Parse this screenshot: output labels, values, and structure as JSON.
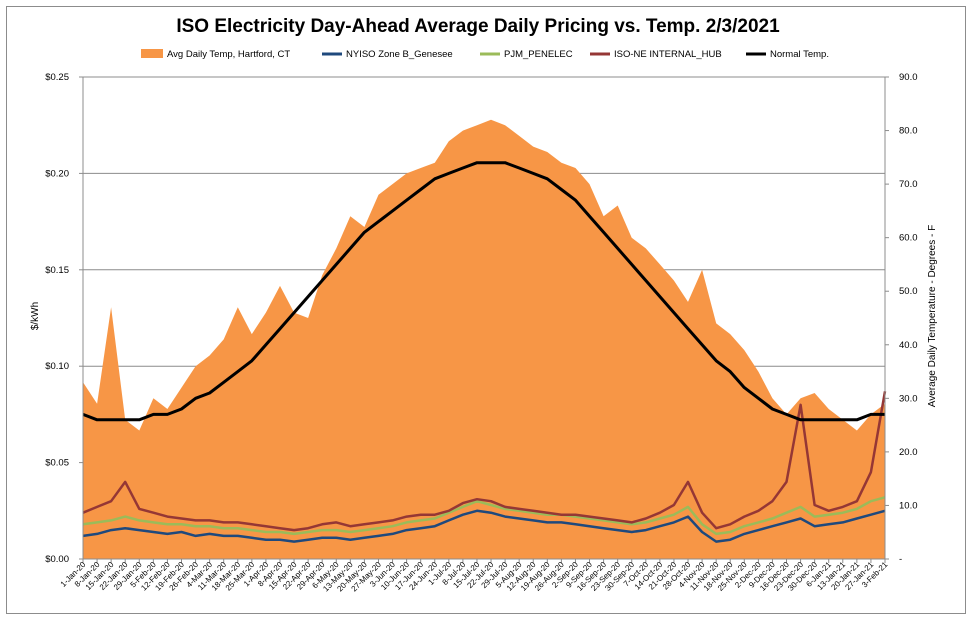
{
  "chart_data": {
    "type": "area",
    "title": "ISO Electricity Day-Ahead Average Daily Pricing vs. Temp. 2/3/2021",
    "xlabel": "",
    "ylabel": "$/kWh",
    "y2label": "Average Daily Temperature - Degrees - F",
    "ylim": [
      0,
      0.25
    ],
    "y2lim": [
      0,
      90
    ],
    "yticks": [
      "$0.00",
      "$0.05",
      "$0.10",
      "$0.15",
      "$0.20",
      "$0.25"
    ],
    "y2ticks": [
      "-",
      "10.0",
      "20.0",
      "30.0",
      "40.0",
      "50.0",
      "60.0",
      "70.0",
      "80.0",
      "90.0"
    ],
    "grid": true,
    "legend_position": "top",
    "x_range": [
      "2020-01-01",
      "2021-02-03"
    ],
    "categories": [
      "1-Jan-20",
      "8-Jan-20",
      "15-Jan-20",
      "22-Jan-20",
      "29-Jan-20",
      "5-Feb-20",
      "12-Feb-20",
      "19-Feb-20",
      "26-Feb-20",
      "4-Mar-20",
      "11-Mar-20",
      "18-Mar-20",
      "25-Mar-20",
      "1-Apr-20",
      "8-Apr-20",
      "15-Apr-20",
      "22-Apr-20",
      "29-Apr-20",
      "6-May-20",
      "13-May-20",
      "20-May-20",
      "27-May-20",
      "3-Jun-20",
      "10-Jun-20",
      "17-Jun-20",
      "24-Jun-20",
      "1-Jul-20",
      "8-Jul-20",
      "15-Jul-20",
      "22-Jul-20",
      "29-Jul-20",
      "5-Aug-20",
      "12-Aug-20",
      "19-Aug-20",
      "26-Aug-20",
      "2-Sep-20",
      "9-Sep-20",
      "16-Sep-20",
      "23-Sep-20",
      "30-Sep-20",
      "7-Oct-20",
      "14-Oct-20",
      "21-Oct-20",
      "28-Oct-20",
      "4-Nov-20",
      "11-Nov-20",
      "18-Nov-20",
      "25-Nov-20",
      "2-Dec-20",
      "9-Dec-20",
      "16-Dec-20",
      "23-Dec-20",
      "30-Dec-20",
      "6-Jan-21",
      "13-Jan-21",
      "20-Jan-21",
      "27-Jan-21",
      "3-Feb-21"
    ],
    "series": [
      {
        "name": "Avg Daily Temp, Hartford, CT",
        "type": "area",
        "axis": "right",
        "color": "#F79646",
        "values": [
          33,
          29,
          47,
          26,
          24,
          30,
          28,
          32,
          36,
          38,
          41,
          47,
          42,
          46,
          51,
          46,
          45,
          53,
          58,
          64,
          62,
          68,
          70,
          72,
          73,
          74,
          78,
          80,
          81,
          82,
          81,
          79,
          77,
          76,
          74,
          73,
          70,
          64,
          66,
          60,
          58,
          55,
          52,
          48,
          54,
          44,
          42,
          39,
          35,
          30,
          27,
          30,
          31,
          28,
          26,
          24,
          27,
          29
        ]
      },
      {
        "name": "NYISO Zone B_Genesee",
        "type": "line",
        "axis": "left",
        "color": "#1F497D",
        "values": [
          0.012,
          0.013,
          0.015,
          0.016,
          0.015,
          0.014,
          0.013,
          0.014,
          0.012,
          0.013,
          0.012,
          0.012,
          0.011,
          0.01,
          0.01,
          0.009,
          0.01,
          0.011,
          0.011,
          0.01,
          0.011,
          0.012,
          0.013,
          0.015,
          0.016,
          0.017,
          0.02,
          0.023,
          0.025,
          0.024,
          0.022,
          0.021,
          0.02,
          0.019,
          0.019,
          0.018,
          0.017,
          0.016,
          0.015,
          0.014,
          0.015,
          0.017,
          0.019,
          0.022,
          0.014,
          0.009,
          0.01,
          0.013,
          0.015,
          0.017,
          0.019,
          0.021,
          0.017,
          0.018,
          0.019,
          0.021,
          0.023,
          0.025
        ]
      },
      {
        "name": "PJM_PENELEC",
        "type": "line",
        "axis": "left",
        "color": "#9BBB59",
        "values": [
          0.018,
          0.019,
          0.02,
          0.022,
          0.02,
          0.019,
          0.018,
          0.018,
          0.017,
          0.017,
          0.016,
          0.016,
          0.015,
          0.014,
          0.014,
          0.013,
          0.014,
          0.015,
          0.015,
          0.014,
          0.015,
          0.016,
          0.017,
          0.019,
          0.02,
          0.021,
          0.024,
          0.027,
          0.03,
          0.028,
          0.026,
          0.025,
          0.024,
          0.023,
          0.023,
          0.022,
          0.021,
          0.02,
          0.019,
          0.018,
          0.019,
          0.021,
          0.023,
          0.027,
          0.018,
          0.013,
          0.014,
          0.017,
          0.019,
          0.021,
          0.024,
          0.027,
          0.022,
          0.023,
          0.024,
          0.026,
          0.03,
          0.032
        ]
      },
      {
        "name": "ISO-NE INTERNAL_HUB",
        "type": "line",
        "axis": "left",
        "color": "#953735",
        "values": [
          0.024,
          0.027,
          0.03,
          0.04,
          0.026,
          0.024,
          0.022,
          0.021,
          0.02,
          0.02,
          0.019,
          0.019,
          0.018,
          0.017,
          0.016,
          0.015,
          0.016,
          0.018,
          0.019,
          0.017,
          0.018,
          0.019,
          0.02,
          0.022,
          0.023,
          0.023,
          0.025,
          0.029,
          0.031,
          0.03,
          0.027,
          0.026,
          0.025,
          0.024,
          0.023,
          0.023,
          0.022,
          0.021,
          0.02,
          0.019,
          0.021,
          0.024,
          0.028,
          0.04,
          0.024,
          0.016,
          0.018,
          0.022,
          0.025,
          0.03,
          0.04,
          0.08,
          0.028,
          0.025,
          0.027,
          0.03,
          0.045,
          0.087
        ]
      },
      {
        "name": "Normal Temp.",
        "type": "line",
        "axis": "right",
        "color": "#000000",
        "values": [
          27,
          26,
          26,
          26,
          26,
          27,
          27,
          28,
          30,
          31,
          33,
          35,
          37,
          40,
          43,
          46,
          49,
          52,
          55,
          58,
          61,
          63,
          65,
          67,
          69,
          71,
          72,
          73,
          74,
          74,
          74,
          73,
          72,
          71,
          69,
          67,
          64,
          61,
          58,
          55,
          52,
          49,
          46,
          43,
          40,
          37,
          35,
          32,
          30,
          28,
          27,
          26,
          26,
          26,
          26,
          26,
          27,
          27
        ]
      }
    ]
  }
}
